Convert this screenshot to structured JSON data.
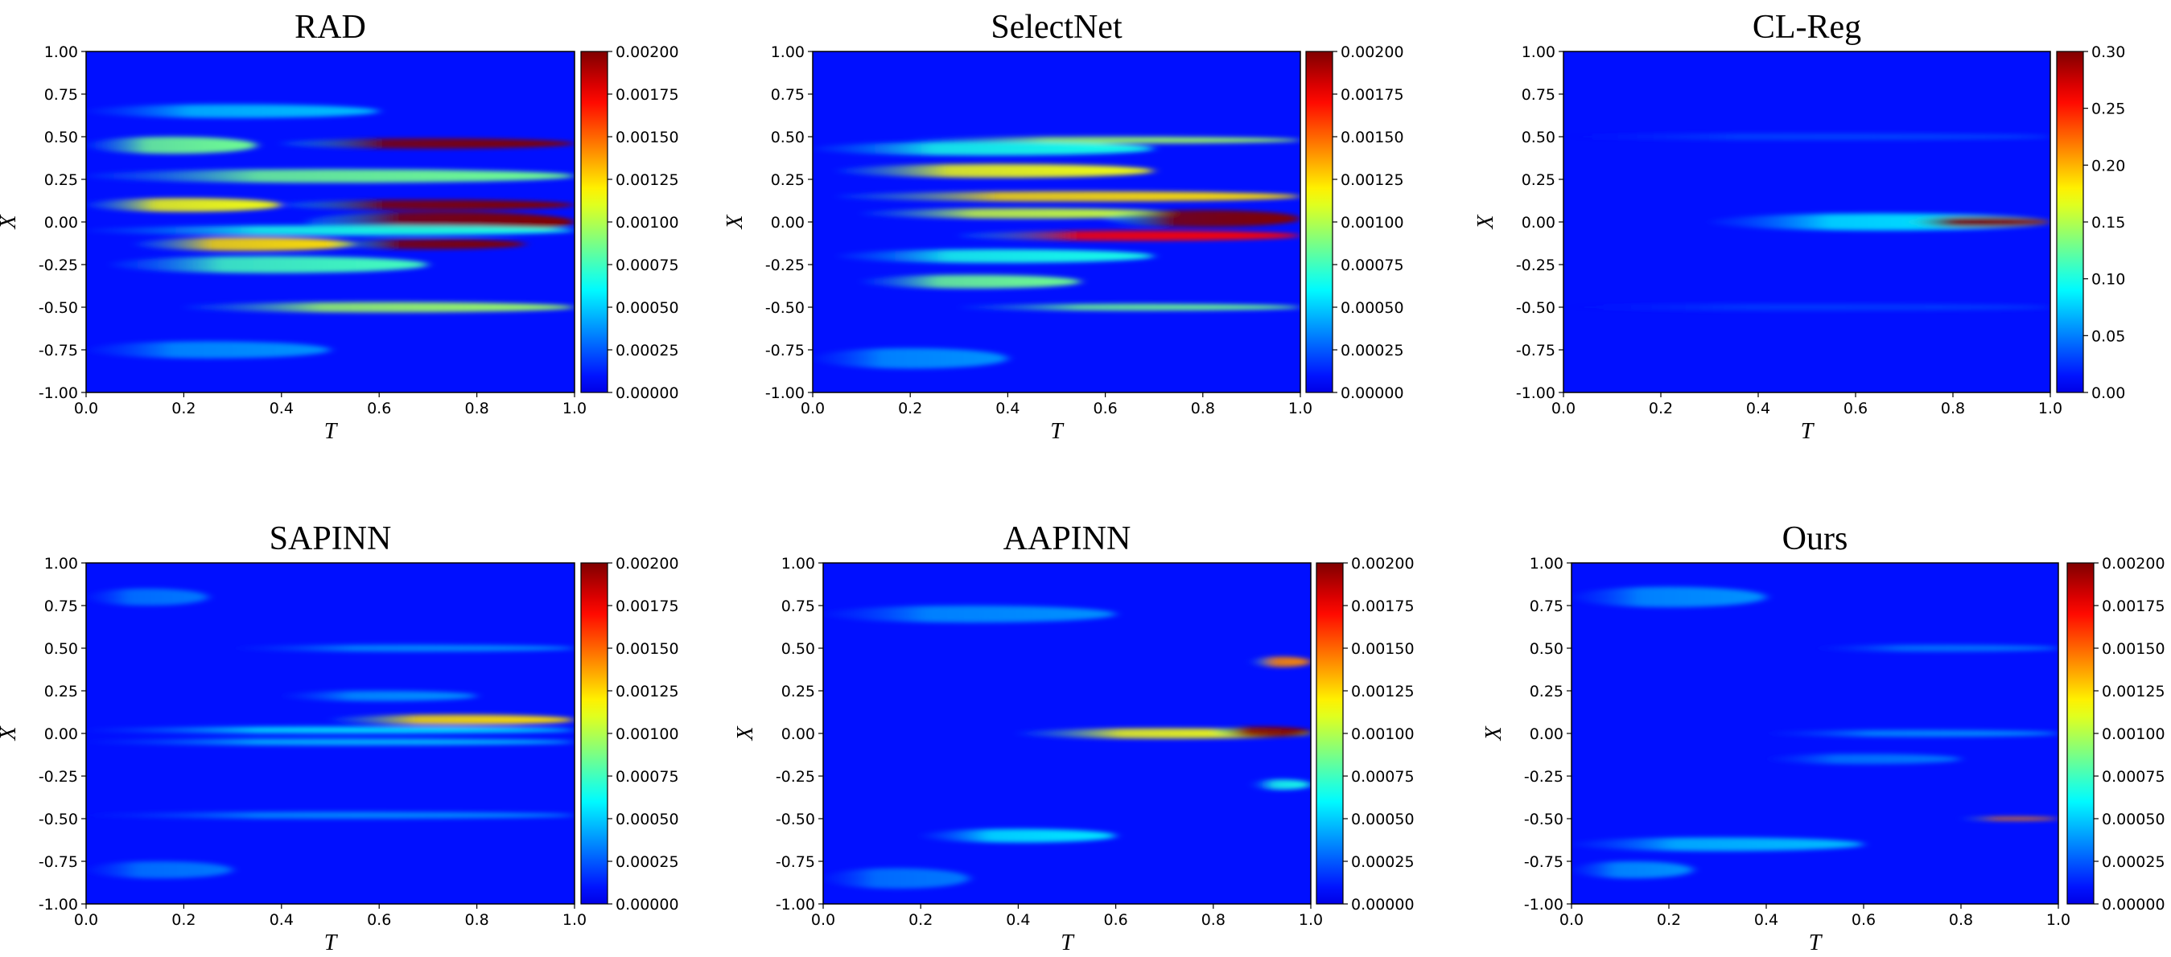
{
  "figure": {
    "colormap": "jet",
    "background": "#ffffff"
  },
  "chart_data": [
    {
      "type": "heatmap",
      "title": "RAD",
      "xlabel": "T",
      "ylabel": "X",
      "xlim": [
        0.0,
        1.0
      ],
      "ylim": [
        -1.0,
        1.0
      ],
      "xticks": [
        "0.0",
        "0.2",
        "0.4",
        "0.6",
        "0.8",
        "1.0"
      ],
      "yticks": [
        "1.00",
        "0.75",
        "0.50",
        "0.25",
        "0.00",
        "-0.25",
        "-0.50",
        "-0.75",
        "-1.00"
      ],
      "colorbar": {
        "min": 0.0,
        "max": 0.002,
        "ticks": [
          "0.00200",
          "0.00175",
          "0.00150",
          "0.00125",
          "0.00100",
          "0.00075",
          "0.00050",
          "0.00025",
          "0.00000"
        ]
      },
      "features": [
        {
          "x0": 0.0,
          "x1": 0.35,
          "y": 0.45,
          "hw": 0.05,
          "amp": 0.4
        },
        {
          "x0": 0.4,
          "x1": 1.0,
          "y": 0.46,
          "hw": 0.03,
          "amp": 1.0
        },
        {
          "x0": 0.0,
          "x1": 1.0,
          "y": 0.27,
          "hw": 0.04,
          "amp": 0.4
        },
        {
          "x0": 0.0,
          "x1": 0.4,
          "y": 0.1,
          "hw": 0.04,
          "amp": 0.55
        },
        {
          "x0": 0.4,
          "x1": 1.0,
          "y": 0.1,
          "hw": 0.03,
          "amp": 1.0
        },
        {
          "x0": 0.45,
          "x1": 1.0,
          "y": 0.0,
          "hw": 0.06,
          "amp": 1.1
        },
        {
          "x0": 0.0,
          "x1": 1.0,
          "y": -0.05,
          "hw": 0.03,
          "amp": 0.3
        },
        {
          "x0": 0.1,
          "x1": 0.55,
          "y": -0.13,
          "hw": 0.04,
          "amp": 0.6
        },
        {
          "x0": 0.5,
          "x1": 0.9,
          "y": -0.13,
          "hw": 0.03,
          "amp": 1.0
        },
        {
          "x0": 0.05,
          "x1": 0.7,
          "y": -0.25,
          "hw": 0.05,
          "amp": 0.35
        },
        {
          "x0": 0.2,
          "x1": 1.0,
          "y": -0.5,
          "hw": 0.03,
          "amp": 0.45
        },
        {
          "x0": 0.0,
          "x1": 0.6,
          "y": 0.65,
          "hw": 0.04,
          "amp": 0.2
        },
        {
          "x0": 0.0,
          "x1": 0.5,
          "y": -0.75,
          "hw": 0.05,
          "amp": 0.15
        }
      ]
    },
    {
      "type": "heatmap",
      "title": "SelectNet",
      "xlabel": "T",
      "ylabel": "X",
      "xlim": [
        0.0,
        1.0
      ],
      "ylim": [
        -1.0,
        1.0
      ],
      "xticks": [
        "0.0",
        "0.2",
        "0.4",
        "0.6",
        "0.8",
        "1.0"
      ],
      "yticks": [
        "1.00",
        "0.75",
        "0.50",
        "0.25",
        "0.00",
        "-0.25",
        "-0.50",
        "-0.75",
        "-1.00"
      ],
      "colorbar": {
        "min": 0.0,
        "max": 0.002,
        "ticks": [
          "0.00200",
          "0.00175",
          "0.00150",
          "0.00125",
          "0.00100",
          "0.00075",
          "0.00050",
          "0.00025",
          "0.00000"
        ]
      },
      "features": [
        {
          "x0": 0.2,
          "x1": 1.0,
          "y": 0.48,
          "hw": 0.02,
          "amp": 0.45
        },
        {
          "x0": 0.0,
          "x1": 0.7,
          "y": 0.43,
          "hw": 0.04,
          "amp": 0.3
        },
        {
          "x0": 0.05,
          "x1": 0.7,
          "y": 0.3,
          "hw": 0.04,
          "amp": 0.55
        },
        {
          "x0": 0.05,
          "x1": 1.0,
          "y": 0.15,
          "hw": 0.03,
          "amp": 0.6
        },
        {
          "x0": 0.1,
          "x1": 0.75,
          "y": 0.05,
          "hw": 0.03,
          "amp": 0.5
        },
        {
          "x0": 0.6,
          "x1": 1.0,
          "y": 0.02,
          "hw": 0.05,
          "amp": 1.1
        },
        {
          "x0": 0.3,
          "x1": 1.0,
          "y": -0.08,
          "hw": 0.03,
          "amp": 0.85
        },
        {
          "x0": 0.05,
          "x1": 0.7,
          "y": -0.2,
          "hw": 0.04,
          "amp": 0.3
        },
        {
          "x0": 0.1,
          "x1": 0.55,
          "y": -0.35,
          "hw": 0.04,
          "amp": 0.4
        },
        {
          "x0": 0.3,
          "x1": 1.0,
          "y": -0.5,
          "hw": 0.02,
          "amp": 0.4
        },
        {
          "x0": 0.0,
          "x1": 0.4,
          "y": -0.8,
          "hw": 0.06,
          "amp": 0.15
        }
      ]
    },
    {
      "type": "heatmap",
      "title": "CL-Reg",
      "xlabel": "T",
      "ylabel": "X",
      "xlim": [
        0.0,
        1.0
      ],
      "ylim": [
        -1.0,
        1.0
      ],
      "xticks": [
        "0.0",
        "0.2",
        "0.4",
        "0.6",
        "0.8",
        "1.0"
      ],
      "yticks": [
        "1.00",
        "0.75",
        "0.50",
        "0.25",
        "0.00",
        "-0.25",
        "-0.50",
        "-0.75",
        "-1.00"
      ],
      "colorbar": {
        "min": 0.0,
        "max": 0.3,
        "ticks": [
          "0.30",
          "0.25",
          "0.20",
          "0.15",
          "0.10",
          "0.05",
          "0.00"
        ]
      },
      "features": [
        {
          "x0": 0.3,
          "x1": 1.0,
          "y": 0.0,
          "hw": 0.05,
          "amp": 0.25
        },
        {
          "x0": 0.7,
          "x1": 1.0,
          "y": 0.0,
          "hw": 0.03,
          "amp": 1.0
        },
        {
          "x0": 0.0,
          "x1": 1.0,
          "y": 0.5,
          "hw": 0.02,
          "amp": 0.06
        },
        {
          "x0": 0.0,
          "x1": 1.0,
          "y": -0.5,
          "hw": 0.02,
          "amp": 0.05
        }
      ]
    },
    {
      "type": "heatmap",
      "title": "SAPINN",
      "xlabel": "T",
      "ylabel": "X",
      "xlim": [
        0.0,
        1.0
      ],
      "ylim": [
        -1.0,
        1.0
      ],
      "xticks": [
        "0.0",
        "0.2",
        "0.4",
        "0.6",
        "0.8",
        "1.0"
      ],
      "yticks": [
        "1.00",
        "0.75",
        "0.50",
        "0.25",
        "0.00",
        "-0.25",
        "-0.50",
        "-0.75",
        "-1.00"
      ],
      "colorbar": {
        "min": 0.0,
        "max": 0.002,
        "ticks": [
          "0.00200",
          "0.00175",
          "0.00150",
          "0.00125",
          "0.00100",
          "0.00075",
          "0.00050",
          "0.00025",
          "0.00000"
        ]
      },
      "features": [
        {
          "x0": 0.5,
          "x1": 1.0,
          "y": 0.08,
          "hw": 0.03,
          "amp": 0.6
        },
        {
          "x0": 0.0,
          "x1": 1.0,
          "y": 0.02,
          "hw": 0.02,
          "amp": 0.25
        },
        {
          "x0": 0.0,
          "x1": 1.0,
          "y": -0.05,
          "hw": 0.02,
          "amp": 0.2
        },
        {
          "x0": 0.3,
          "x1": 1.0,
          "y": 0.5,
          "hw": 0.02,
          "amp": 0.15
        },
        {
          "x0": 0.4,
          "x1": 0.8,
          "y": 0.22,
          "hw": 0.03,
          "amp": 0.15
        },
        {
          "x0": 0.0,
          "x1": 1.0,
          "y": -0.48,
          "hw": 0.02,
          "amp": 0.15
        },
        {
          "x0": 0.0,
          "x1": 0.3,
          "y": -0.8,
          "hw": 0.05,
          "amp": 0.12
        },
        {
          "x0": 0.0,
          "x1": 0.25,
          "y": 0.8,
          "hw": 0.05,
          "amp": 0.12
        }
      ]
    },
    {
      "type": "heatmap",
      "title": "AAPINN",
      "xlabel": "T",
      "ylabel": "X",
      "xlim": [
        0.0,
        1.0
      ],
      "ylim": [
        -1.0,
        1.0
      ],
      "xticks": [
        "0.0",
        "0.2",
        "0.4",
        "0.6",
        "0.8",
        "1.0"
      ],
      "yticks": [
        "1.00",
        "0.75",
        "0.50",
        "0.25",
        "0.00",
        "-0.25",
        "-0.50",
        "-0.75",
        "-1.00"
      ],
      "colorbar": {
        "min": 0.0,
        "max": 0.002,
        "ticks": [
          "0.00200",
          "0.00175",
          "0.00150",
          "0.00125",
          "0.00100",
          "0.00075",
          "0.00050",
          "0.00025",
          "0.00000"
        ]
      },
      "features": [
        {
          "x0": 0.4,
          "x1": 1.0,
          "y": 0.0,
          "hw": 0.03,
          "amp": 0.55
        },
        {
          "x0": 0.8,
          "x1": 1.0,
          "y": 0.01,
          "hw": 0.03,
          "amp": 1.0
        },
        {
          "x0": 0.88,
          "x1": 1.0,
          "y": 0.42,
          "hw": 0.03,
          "amp": 0.7
        },
        {
          "x0": 0.0,
          "x1": 0.6,
          "y": 0.7,
          "hw": 0.05,
          "amp": 0.15
        },
        {
          "x0": 0.2,
          "x1": 0.6,
          "y": -0.6,
          "hw": 0.04,
          "amp": 0.25
        },
        {
          "x0": 0.88,
          "x1": 1.0,
          "y": -0.3,
          "hw": 0.03,
          "amp": 0.3
        },
        {
          "x0": 0.0,
          "x1": 0.3,
          "y": -0.85,
          "hw": 0.06,
          "amp": 0.12
        }
      ]
    },
    {
      "type": "heatmap",
      "title": "Ours",
      "xlabel": "T",
      "ylabel": "X",
      "xlim": [
        0.0,
        1.0
      ],
      "ylim": [
        -1.0,
        1.0
      ],
      "xticks": [
        "0.0",
        "0.2",
        "0.4",
        "0.6",
        "0.8",
        "1.0"
      ],
      "yticks": [
        "1.00",
        "0.75",
        "0.50",
        "0.25",
        "0.00",
        "-0.25",
        "-0.50",
        "-0.75",
        "-1.00"
      ],
      "colorbar": {
        "min": 0.0,
        "max": 0.002,
        "ticks": [
          "0.00200",
          "0.00175",
          "0.00150",
          "0.00125",
          "0.00100",
          "0.00075",
          "0.00050",
          "0.00025",
          "0.00000"
        ]
      },
      "features": [
        {
          "x0": 0.8,
          "x1": 1.0,
          "y": -0.5,
          "hw": 0.01,
          "amp": 0.7
        },
        {
          "x0": 0.0,
          "x1": 0.6,
          "y": -0.65,
          "hw": 0.04,
          "amp": 0.2
        },
        {
          "x0": 0.0,
          "x1": 0.4,
          "y": 0.8,
          "hw": 0.06,
          "amp": 0.15
        },
        {
          "x0": 0.4,
          "x1": 1.0,
          "y": 0.0,
          "hw": 0.02,
          "amp": 0.15
        },
        {
          "x0": 0.5,
          "x1": 1.0,
          "y": 0.5,
          "hw": 0.02,
          "amp": 0.12
        },
        {
          "x0": 0.4,
          "x1": 0.8,
          "y": -0.15,
          "hw": 0.03,
          "amp": 0.12
        },
        {
          "x0": 0.0,
          "x1": 0.25,
          "y": -0.8,
          "hw": 0.05,
          "amp": 0.15
        }
      ]
    }
  ]
}
